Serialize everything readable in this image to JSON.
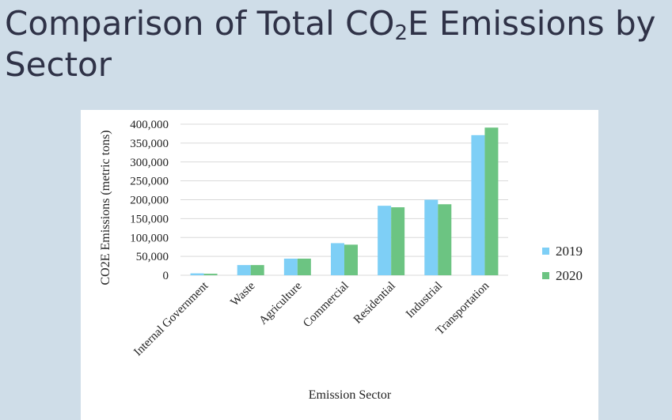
{
  "slide": {
    "title_prefix": "Comparison of Total CO",
    "title_sub": "2",
    "title_suffix": "E Emissions by Sector"
  },
  "colors": {
    "background": "#cfdde8",
    "series_2019": "#7ecff6",
    "series_2020": "#6cc482",
    "gridline": "#d9d9d9"
  },
  "chart_data": {
    "type": "bar",
    "title": "",
    "xlabel": "Emission Sector",
    "ylabel": "CO2E Emissions (metric tons)",
    "ylim": [
      0,
      400000
    ],
    "yticks": [
      0,
      50000,
      100000,
      150000,
      200000,
      250000,
      300000,
      350000,
      400000
    ],
    "ytick_labels": [
      "0",
      "50,000",
      "100,000",
      "150,000",
      "200,000",
      "250,000",
      "300,000",
      "350,000",
      "400,000"
    ],
    "categories": [
      "Internal Government",
      "Waste",
      "Agriculture",
      "Commercial",
      "Residential",
      "Industrial",
      "Transportation"
    ],
    "series": [
      {
        "name": "2019",
        "values": [
          5000,
          27000,
          44000,
          85000,
          184000,
          200000,
          371000
        ]
      },
      {
        "name": "2020",
        "values": [
          4000,
          27000,
          44000,
          81000,
          180000,
          188000,
          391000
        ]
      }
    ],
    "grid": true,
    "legend_position": "right"
  }
}
